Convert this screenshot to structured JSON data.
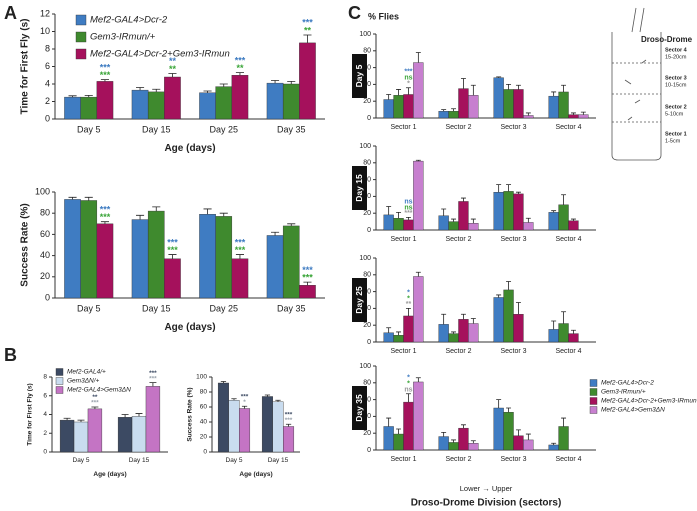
{
  "panel_labels": [
    "A",
    "B",
    "C"
  ],
  "diagram": {
    "title": "Droso-Drome",
    "sectors": [
      {
        "name": "Sector 4",
        "range": "15-20cm"
      },
      {
        "name": "Sector 3",
        "range": "10-15cm"
      },
      {
        "name": "Sector 2",
        "range": "5-10cm"
      },
      {
        "name": "Sector 1",
        "range": "1-5cm"
      }
    ]
  },
  "chart_data": [
    {
      "type": "bar",
      "y_label": "Time for First Fly (s)",
      "x_label": "Age (days)",
      "categories": [
        "Day 5",
        "Day 15",
        "Day 25",
        "Day 35"
      ],
      "ylim": [
        0,
        12
      ],
      "yticks": [
        0,
        2,
        4,
        6,
        8,
        10,
        12
      ],
      "series": [
        {
          "name": "Mef2-GAL4>Dcr-2",
          "color": "#3f7cc2",
          "values": [
            2.5,
            3.3,
            3.0,
            4.1
          ],
          "errors": [
            0.15,
            0.3,
            0.2,
            0.3
          ]
        },
        {
          "name": "Gem3-IRmun/+",
          "color": "#3f8a2e",
          "values": [
            2.5,
            3.1,
            3.7,
            4.0
          ],
          "errors": [
            0.2,
            0.3,
            0.3,
            0.3
          ]
        },
        {
          "name": "Mef2-GAL4>Dcr-2+Gem3-IRmun",
          "color": "#a5115c",
          "values": [
            4.3,
            4.8,
            5.0,
            8.7
          ],
          "errors": [
            0.2,
            0.4,
            0.3,
            0.9
          ]
        }
      ],
      "significance": [
        {
          "category": 0,
          "labels": [
            {
              "text": "***",
              "color": "#3aa538"
            },
            {
              "text": "***",
              "color": "#3f7cc2"
            }
          ]
        },
        {
          "category": 1,
          "labels": [
            {
              "text": "**",
              "color": "#3aa538"
            },
            {
              "text": "**",
              "color": "#3f7cc2"
            }
          ]
        },
        {
          "category": 2,
          "labels": [
            {
              "text": "**",
              "color": "#3aa538"
            },
            {
              "text": "***",
              "color": "#3f7cc2"
            }
          ]
        },
        {
          "category": 3,
          "labels": [
            {
              "text": "**",
              "color": "#3aa538"
            },
            {
              "text": "***",
              "color": "#3f7cc2"
            }
          ]
        }
      ]
    },
    {
      "type": "bar",
      "y_label": "Success Rate (%)",
      "x_label": "Age (days)",
      "categories": [
        "Day 5",
        "Day 15",
        "Day 25",
        "Day 35"
      ],
      "ylim": [
        0,
        100
      ],
      "yticks": [
        0,
        20,
        40,
        60,
        80,
        100
      ],
      "series": [
        {
          "color": "#3f7cc2",
          "values": [
            93,
            74,
            79,
            59
          ],
          "errors": [
            2,
            4,
            5,
            3
          ]
        },
        {
          "color": "#3f8a2e",
          "values": [
            92,
            82,
            77,
            68
          ],
          "errors": [
            3,
            4,
            3,
            2
          ]
        },
        {
          "color": "#a5115c",
          "values": [
            70,
            37,
            37,
            12
          ],
          "errors": [
            2,
            4,
            4,
            3
          ]
        }
      ],
      "significance": [
        {
          "category": 0,
          "labels": [
            {
              "text": "***",
              "color": "#3aa538"
            },
            {
              "text": "***",
              "color": "#3f7cc2"
            }
          ]
        },
        {
          "category": 1,
          "labels": [
            {
              "text": "***",
              "color": "#3aa538"
            },
            {
              "text": "***",
              "color": "#3f7cc2"
            }
          ]
        },
        {
          "category": 2,
          "labels": [
            {
              "text": "***",
              "color": "#3aa538"
            },
            {
              "text": "***",
              "color": "#3f7cc2"
            }
          ]
        },
        {
          "category": 3,
          "labels": [
            {
              "text": "***",
              "color": "#3aa538"
            },
            {
              "text": "***",
              "color": "#3f7cc2"
            }
          ]
        }
      ]
    },
    {
      "type": "bar",
      "y_label": "Time for First Fly (s)",
      "x_label": "Age (days)",
      "categories": [
        "Day 5",
        "Day 15"
      ],
      "ylim": [
        0,
        8
      ],
      "yticks": [
        0,
        2,
        4,
        6,
        8
      ],
      "series": [
        {
          "name": "Mef2-GAL4/+",
          "color": "#3c4a63",
          "values": [
            3.4,
            3.7
          ],
          "errors": [
            0.2,
            0.3
          ]
        },
        {
          "name": "Gem3ΔN/+",
          "color": "#c9dcef",
          "values": [
            3.2,
            3.8
          ],
          "errors": [
            0.2,
            0.3
          ]
        },
        {
          "name": "Mef2-GAL4>Gem3ΔN",
          "color": "#c474c4",
          "values": [
            4.6,
            7.0
          ],
          "errors": [
            0.2,
            0.4
          ]
        }
      ],
      "significance": [
        {
          "category": 0,
          "labels": [
            {
              "text": "***",
              "color": "#9aa3ad"
            },
            {
              "text": "**",
              "color": "#3c4a63"
            }
          ]
        },
        {
          "category": 1,
          "labels": [
            {
              "text": "***",
              "color": "#9aa3ad"
            },
            {
              "text": "***",
              "color": "#3c4a63"
            }
          ]
        }
      ]
    },
    {
      "type": "bar",
      "y_label": "Success Rate (%)",
      "x_label": "Age (days)",
      "categories": [
        "Day 5",
        "Day 15"
      ],
      "ylim": [
        0,
        100
      ],
      "yticks": [
        0,
        20,
        40,
        60,
        80,
        100
      ],
      "series": [
        {
          "color": "#3c4a63",
          "values": [
            92,
            74
          ],
          "errors": [
            2,
            2
          ]
        },
        {
          "color": "#c9dcef",
          "values": [
            69,
            67
          ],
          "errors": [
            2,
            2
          ]
        },
        {
          "color": "#c474c4",
          "values": [
            58,
            34
          ],
          "errors": [
            3,
            3
          ]
        }
      ],
      "significance": [
        {
          "category": 0,
          "labels": [
            {
              "text": "*",
              "color": "#9aa3ad"
            },
            {
              "text": "***",
              "color": "#3c4a63"
            }
          ]
        },
        {
          "category": 1,
          "labels": [
            {
              "text": "***",
              "color": "#9aa3ad"
            },
            {
              "text": "***",
              "color": "#3c4a63"
            }
          ]
        }
      ]
    },
    {
      "type": "bar",
      "title": "Day 5",
      "y_label": "% Flies",
      "categories": [
        "Sector 1",
        "Sector 2",
        "Sector 3",
        "Sector 4"
      ],
      "ylim": [
        0,
        100
      ],
      "yticks": [
        0,
        20,
        40,
        60,
        80,
        100
      ],
      "series": [
        {
          "color": "#3f7cc2",
          "values": [
            22,
            8,
            48,
            26
          ],
          "errors": [
            6,
            2,
            1,
            5
          ]
        },
        {
          "color": "#3f8a2e",
          "values": [
            27,
            8,
            34,
            31
          ],
          "errors": [
            7,
            3,
            6,
            8
          ]
        },
        {
          "color": "#a5115c",
          "values": [
            28,
            35,
            34,
            4
          ],
          "errors": [
            8,
            12,
            5,
            2
          ]
        },
        {
          "color": "#c77fcf",
          "values": [
            66,
            27,
            3,
            4
          ],
          "errors": [
            12,
            12,
            3,
            3
          ]
        }
      ],
      "significance": [
        {
          "category": 0,
          "labels": [
            {
              "text": "*",
              "color": "#9a9a9a"
            },
            {
              "text": "ns",
              "color": "#3aa538"
            },
            {
              "text": "***",
              "color": "#3f7cc2"
            }
          ]
        }
      ]
    },
    {
      "type": "bar",
      "title": "Day 15",
      "categories": [
        "Sector 1",
        "Sector 2",
        "Sector 3",
        "Sector 4"
      ],
      "ylim": [
        0,
        100
      ],
      "yticks": [
        0,
        20,
        40,
        60,
        80,
        100
      ],
      "series": [
        {
          "color": "#3f7cc2",
          "values": [
            18,
            17,
            45,
            21
          ],
          "errors": [
            10,
            8,
            9,
            2
          ]
        },
        {
          "color": "#3f8a2e",
          "values": [
            14,
            10,
            46,
            30
          ],
          "errors": [
            7,
            3,
            8,
            12
          ]
        },
        {
          "color": "#a5115c",
          "values": [
            12,
            34,
            43,
            11
          ],
          "errors": [
            3,
            4,
            2,
            2
          ]
        },
        {
          "color": "#c77fcf",
          "values": [
            82,
            8,
            9,
            0
          ],
          "errors": [
            1,
            5,
            5,
            0
          ]
        }
      ],
      "significance": [
        {
          "category": 0,
          "labels": [
            {
              "text": "***",
              "color": "#9a9a9a"
            },
            {
              "text": "ns",
              "color": "#3aa538"
            },
            {
              "text": "ns",
              "color": "#3f7cc2"
            }
          ]
        }
      ]
    },
    {
      "type": "bar",
      "title": "Day 25",
      "categories": [
        "Sector 1",
        "Sector 2",
        "Sector 3",
        "Sector 4"
      ],
      "ylim": [
        0,
        100
      ],
      "yticks": [
        0,
        20,
        40,
        60,
        80,
        100
      ],
      "series": [
        {
          "color": "#3f7cc2",
          "values": [
            11,
            21,
            53,
            15
          ],
          "errors": [
            6,
            12,
            3,
            10
          ]
        },
        {
          "color": "#3f8a2e",
          "values": [
            8,
            10,
            62,
            22
          ],
          "errors": [
            4,
            2,
            10,
            14
          ]
        },
        {
          "color": "#a5115c",
          "values": [
            31,
            27,
            33,
            10
          ],
          "errors": [
            9,
            6,
            14,
            4
          ]
        },
        {
          "color": "#c77fcf",
          "values": [
            78,
            22,
            0,
            0
          ],
          "errors": [
            5,
            6,
            0,
            0
          ]
        }
      ],
      "significance": [
        {
          "category": 0,
          "labels": [
            {
              "text": "**",
              "color": "#9a9a9a"
            },
            {
              "text": "*",
              "color": "#3aa538"
            },
            {
              "text": "*",
              "color": "#3f7cc2"
            }
          ]
        }
      ]
    },
    {
      "type": "bar",
      "title": "Day 35",
      "x_label": "Droso-Drome Division (sectors)",
      "annotation": "Lower → Upper",
      "categories": [
        "Sector 1",
        "Sector 2",
        "Sector 3",
        "Sector 4"
      ],
      "ylim": [
        0,
        100
      ],
      "yticks": [
        0,
        20,
        40,
        60,
        80,
        100
      ],
      "series": [
        {
          "name": "Mef2-GAL4>Dcr-2",
          "color": "#3f7cc2",
          "values": [
            28,
            16,
            50,
            6
          ],
          "errors": [
            10,
            5,
            10,
            2
          ]
        },
        {
          "name": "Gem3-IRmun/+",
          "color": "#3f8a2e",
          "values": [
            19,
            9,
            45,
            28
          ],
          "errors": [
            6,
            3,
            5,
            10
          ]
        },
        {
          "name": "Mef2-GAL4>Dcr-2+Gem3-IRmun",
          "color": "#a5115c",
          "values": [
            57,
            26,
            17,
            0
          ],
          "errors": [
            10,
            4,
            7,
            0
          ]
        },
        {
          "name": "Mef2-GAL4>Gem3ΔN",
          "color": "#c77fcf",
          "values": [
            81,
            8,
            12,
            0
          ],
          "errors": [
            5,
            3,
            7,
            0
          ]
        }
      ],
      "significance": [
        {
          "category": 0,
          "labels": [
            {
              "text": "ns",
              "color": "#9a9a9a"
            },
            {
              "text": "*",
              "color": "#3aa538"
            },
            {
              "text": "*",
              "color": "#3f7cc2"
            }
          ]
        }
      ]
    }
  ]
}
